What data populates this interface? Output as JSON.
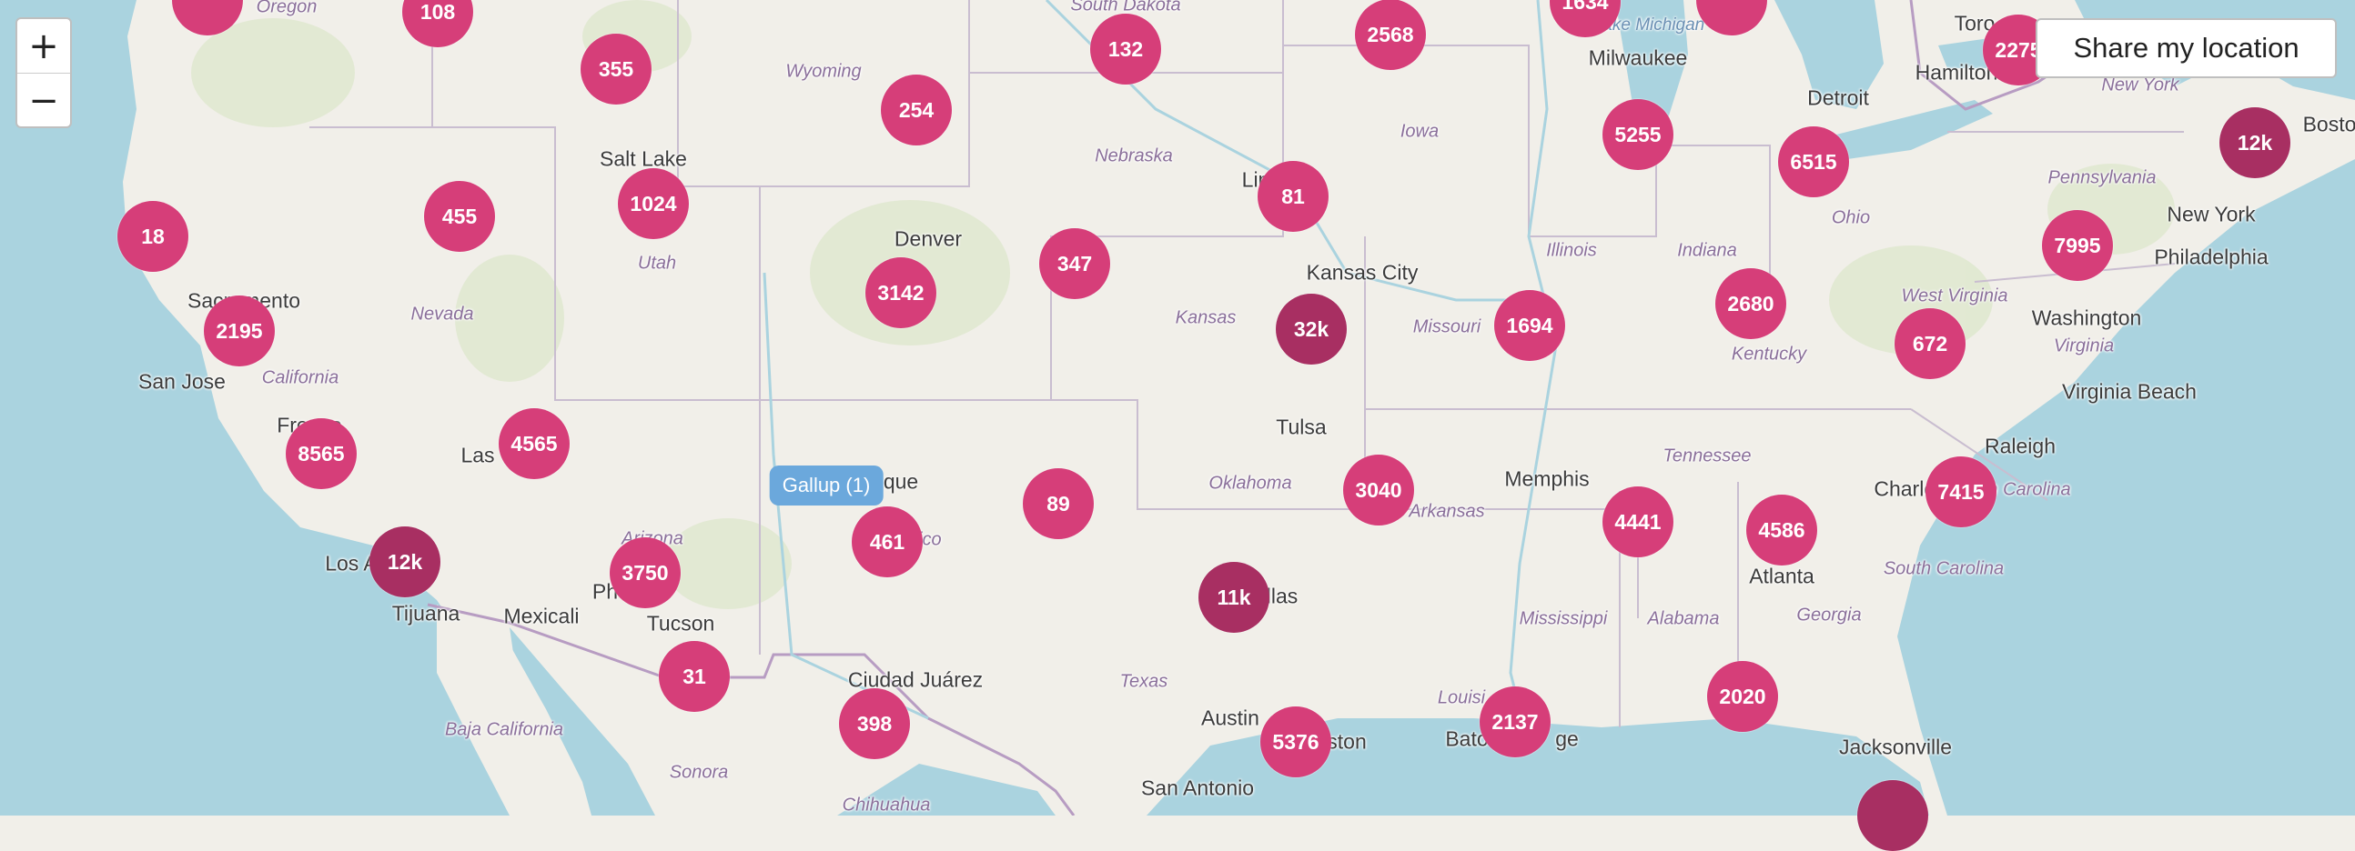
{
  "controls": {
    "zoom_in": "+",
    "zoom_out": "−",
    "share_location": "Share my location"
  },
  "colors": {
    "cluster": "#d63e79",
    "cluster_large": "#a82f62",
    "tooltip": "#6ba8dc",
    "water": "#aad3df",
    "land": "#f1efe9"
  },
  "tooltip": {
    "label": "Gallup (1)"
  },
  "places": [
    {
      "id": "oregon",
      "label": "Oregon",
      "kind": "state"
    },
    {
      "id": "south-dakota",
      "label": "South Dakota",
      "kind": "state"
    },
    {
      "id": "lake-michigan",
      "label": "Lake Michigan",
      "kind": "lake"
    },
    {
      "id": "toronto",
      "label": "Toro",
      "kind": "city"
    },
    {
      "id": "milwaukee",
      "label": "Milwaukee",
      "kind": "city"
    },
    {
      "id": "hamilton",
      "label": "Hamilton",
      "kind": "city"
    },
    {
      "id": "new-york-state",
      "label": "New York",
      "kind": "state"
    },
    {
      "id": "wyoming",
      "label": "Wyoming",
      "kind": "state"
    },
    {
      "id": "detroit",
      "label": "Detroit",
      "kind": "city"
    },
    {
      "id": "boston",
      "label": "Bosto",
      "kind": "city"
    },
    {
      "id": "iowa",
      "label": "Iowa",
      "kind": "state"
    },
    {
      "id": "salt-lake",
      "label": "Salt Lake",
      "kind": "city"
    },
    {
      "id": "nebraska",
      "label": "Nebraska",
      "kind": "state"
    },
    {
      "id": "lincoln",
      "label": "Lin",
      "kind": "city"
    },
    {
      "id": "pennsylvania",
      "label": "Pennsylvania",
      "kind": "state"
    },
    {
      "id": "ohio",
      "label": "Ohio",
      "kind": "state"
    },
    {
      "id": "new-york-city",
      "label": "New York",
      "kind": "city"
    },
    {
      "id": "denver",
      "label": "Denver",
      "kind": "city"
    },
    {
      "id": "illinois",
      "label": "Illinois",
      "kind": "state"
    },
    {
      "id": "indiana",
      "label": "Indiana",
      "kind": "state"
    },
    {
      "id": "utah",
      "label": "Utah",
      "kind": "state"
    },
    {
      "id": "philadelphia",
      "label": "Philadelphia",
      "kind": "city"
    },
    {
      "id": "kansas-city",
      "label": "Kansas City",
      "kind": "city"
    },
    {
      "id": "sacramento",
      "label": "Sacramento",
      "kind": "city"
    },
    {
      "id": "west-virginia",
      "label": "West Virginia",
      "kind": "state"
    },
    {
      "id": "nevada",
      "label": "Nevada",
      "kind": "state"
    },
    {
      "id": "kansas",
      "label": "Kansas",
      "kind": "state"
    },
    {
      "id": "missouri",
      "label": "Missouri",
      "kind": "state"
    },
    {
      "id": "washington",
      "label": "Washington",
      "kind": "city"
    },
    {
      "id": "virginia",
      "label": "Virginia",
      "kind": "state"
    },
    {
      "id": "kentucky",
      "label": "Kentucky",
      "kind": "state"
    },
    {
      "id": "san-jose",
      "label": "San Jose",
      "kind": "city"
    },
    {
      "id": "california",
      "label": "California",
      "kind": "state"
    },
    {
      "id": "virginia-beach",
      "label": "Virginia Beach",
      "kind": "city"
    },
    {
      "id": "fresno",
      "label": "Fresno",
      "kind": "city"
    },
    {
      "id": "tulsa",
      "label": "Tulsa",
      "kind": "city"
    },
    {
      "id": "las-vegas",
      "label": "Las",
      "kind": "city"
    },
    {
      "id": "raleigh",
      "label": "Raleigh",
      "kind": "city"
    },
    {
      "id": "tennessee",
      "label": "Tennessee",
      "kind": "state"
    },
    {
      "id": "albuquerque",
      "label": "que",
      "kind": "city"
    },
    {
      "id": "memphis",
      "label": "Memphis",
      "kind": "city"
    },
    {
      "id": "charlotte",
      "label": "Charlotte",
      "kind": "city"
    },
    {
      "id": "north-carolina",
      "label": "n Carolina",
      "kind": "state"
    },
    {
      "id": "oklahoma",
      "label": "Oklahoma",
      "kind": "state"
    },
    {
      "id": "arkansas",
      "label": "Arkansas",
      "kind": "state"
    },
    {
      "id": "arizona",
      "label": "Arizona",
      "kind": "state"
    },
    {
      "id": "new-mexico",
      "label": "Mexico",
      "kind": "state"
    },
    {
      "id": "los-angeles",
      "label": "Los A",
      "kind": "city"
    },
    {
      "id": "phoenix",
      "label": "Ph",
      "kind": "city"
    },
    {
      "id": "atlanta",
      "label": "Atlanta",
      "kind": "city"
    },
    {
      "id": "south-carolina",
      "label": "South Carolina",
      "kind": "state"
    },
    {
      "id": "dallas",
      "label": "llas",
      "kind": "city"
    },
    {
      "id": "tijuana",
      "label": "Tijuana",
      "kind": "city"
    },
    {
      "id": "mexicali",
      "label": "Mexicali",
      "kind": "city"
    },
    {
      "id": "tucson",
      "label": "Tucson",
      "kind": "city"
    },
    {
      "id": "mississippi",
      "label": "Mississippi",
      "kind": "state"
    },
    {
      "id": "alabama",
      "label": "Alabama",
      "kind": "state"
    },
    {
      "id": "georgia",
      "label": "Georgia",
      "kind": "state"
    },
    {
      "id": "ciudad-juarez",
      "label": "Ciudad Juárez",
      "kind": "city"
    },
    {
      "id": "texas",
      "label": "Texas",
      "kind": "state"
    },
    {
      "id": "louisiana",
      "label": "Louisi",
      "kind": "state"
    },
    {
      "id": "austin",
      "label": "Austin",
      "kind": "city"
    },
    {
      "id": "houston",
      "label": "ston",
      "kind": "city"
    },
    {
      "id": "baton-rouge",
      "label": "Bato",
      "kind": "city"
    },
    {
      "id": "baton-rouge-2",
      "label": "ge",
      "kind": "city"
    },
    {
      "id": "baja-california",
      "label": "Baja California",
      "kind": "state"
    },
    {
      "id": "jacksonville",
      "label": "Jacksonville",
      "kind": "city"
    },
    {
      "id": "sonora",
      "label": "Sonora",
      "kind": "state"
    },
    {
      "id": "san-antonio",
      "label": "San Antonio",
      "kind": "city"
    },
    {
      "id": "chihuahua",
      "label": "Chihuahua",
      "kind": "state"
    }
  ],
  "clusters": [
    {
      "id": "c1",
      "label": "",
      "tone": "normal"
    },
    {
      "id": "c2",
      "label": "108",
      "tone": "normal"
    },
    {
      "id": "c3",
      "label": "1634",
      "tone": "normal"
    },
    {
      "id": "c4",
      "label": "",
      "tone": "normal"
    },
    {
      "id": "c5",
      "label": "2568",
      "tone": "normal"
    },
    {
      "id": "c6",
      "label": "132",
      "tone": "normal"
    },
    {
      "id": "c7",
      "label": "2275",
      "tone": "normal"
    },
    {
      "id": "c8",
      "label": "355",
      "tone": "normal"
    },
    {
      "id": "c9",
      "label": "254",
      "tone": "normal"
    },
    {
      "id": "c10",
      "label": "5255",
      "tone": "normal"
    },
    {
      "id": "c11",
      "label": "12k",
      "tone": "dark"
    },
    {
      "id": "c12",
      "label": "6515",
      "tone": "normal"
    },
    {
      "id": "c13",
      "label": "1024",
      "tone": "normal"
    },
    {
      "id": "c14",
      "label": "455",
      "tone": "normal"
    },
    {
      "id": "c15",
      "label": "81",
      "tone": "normal"
    },
    {
      "id": "c16",
      "label": "18",
      "tone": "normal"
    },
    {
      "id": "c17",
      "label": "7995",
      "tone": "normal"
    },
    {
      "id": "c18",
      "label": "347",
      "tone": "normal"
    },
    {
      "id": "c19",
      "label": "3142",
      "tone": "normal"
    },
    {
      "id": "c20",
      "label": "2680",
      "tone": "normal"
    },
    {
      "id": "c21",
      "label": "32k",
      "tone": "dark"
    },
    {
      "id": "c22",
      "label": "1694",
      "tone": "normal"
    },
    {
      "id": "c23",
      "label": "2195",
      "tone": "normal"
    },
    {
      "id": "c24",
      "label": "672",
      "tone": "normal"
    },
    {
      "id": "c25",
      "label": "4565",
      "tone": "normal"
    },
    {
      "id": "c26",
      "label": "8565",
      "tone": "normal"
    },
    {
      "id": "c27",
      "label": "7415",
      "tone": "normal"
    },
    {
      "id": "c28",
      "label": "3040",
      "tone": "normal"
    },
    {
      "id": "c29",
      "label": "89",
      "tone": "normal"
    },
    {
      "id": "c30",
      "label": "4441",
      "tone": "normal"
    },
    {
      "id": "c31",
      "label": "4586",
      "tone": "normal"
    },
    {
      "id": "c32",
      "label": "461",
      "tone": "normal"
    },
    {
      "id": "c33",
      "label": "12k",
      "tone": "dark"
    },
    {
      "id": "c34",
      "label": "3750",
      "tone": "normal"
    },
    {
      "id": "c35",
      "label": "11k",
      "tone": "dark"
    },
    {
      "id": "c36",
      "label": "31",
      "tone": "normal"
    },
    {
      "id": "c37",
      "label": "2020",
      "tone": "normal"
    },
    {
      "id": "c38",
      "label": "2137",
      "tone": "normal"
    },
    {
      "id": "c39",
      "label": "398",
      "tone": "normal"
    },
    {
      "id": "c40",
      "label": "5376",
      "tone": "normal"
    },
    {
      "id": "c41",
      "label": "",
      "tone": "dark"
    }
  ]
}
